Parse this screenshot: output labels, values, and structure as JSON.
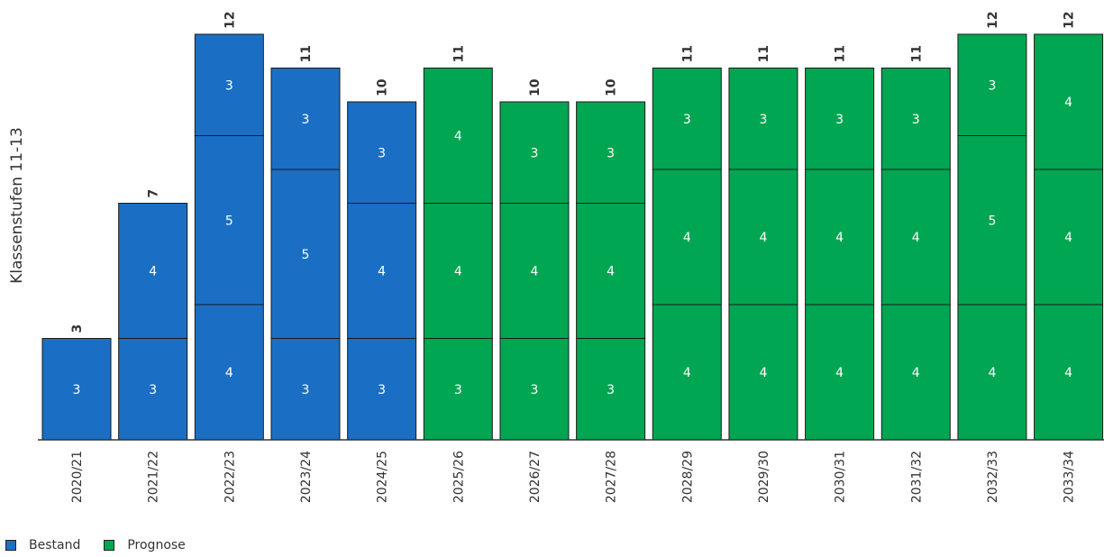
{
  "chart_data": {
    "type": "bar",
    "stacked": true,
    "ylabel": "Klassenstufen 11-13",
    "categories": [
      "2020/21",
      "2021/22",
      "2022/23",
      "2023/24",
      "2024/25",
      "2025/26",
      "2026/27",
      "2027/28",
      "2028/29",
      "2029/30",
      "2030/31",
      "2031/32",
      "2032/33",
      "2033/34"
    ],
    "bars": [
      {
        "segments": [
          3
        ],
        "total": 3,
        "series": "Bestand"
      },
      {
        "segments": [
          3,
          4
        ],
        "total": 7,
        "series": "Bestand"
      },
      {
        "segments": [
          4,
          5,
          3
        ],
        "total": 12,
        "series": "Bestand"
      },
      {
        "segments": [
          3,
          5,
          3
        ],
        "total": 11,
        "series": "Bestand"
      },
      {
        "segments": [
          3,
          4,
          3
        ],
        "total": 10,
        "series": "Bestand"
      },
      {
        "segments": [
          3,
          4,
          4
        ],
        "total": 11,
        "series": "Prognose"
      },
      {
        "segments": [
          3,
          4,
          3
        ],
        "total": 10,
        "series": "Prognose"
      },
      {
        "segments": [
          3,
          4,
          3
        ],
        "total": 10,
        "series": "Prognose"
      },
      {
        "segments": [
          4,
          4,
          3
        ],
        "total": 11,
        "series": "Prognose"
      },
      {
        "segments": [
          4,
          4,
          3
        ],
        "total": 11,
        "series": "Prognose"
      },
      {
        "segments": [
          4,
          4,
          3
        ],
        "total": 11,
        "series": "Prognose"
      },
      {
        "segments": [
          4,
          4,
          3
        ],
        "total": 11,
        "series": "Prognose"
      },
      {
        "segments": [
          4,
          5,
          3
        ],
        "total": 12,
        "series": "Prognose"
      },
      {
        "segments": [
          4,
          4,
          4
        ],
        "total": 12,
        "series": "Prognose"
      }
    ],
    "ylim": [
      0,
      12
    ],
    "grid": false,
    "legend": {
      "placement": "bottom-left",
      "entries": [
        {
          "name": "Bestand",
          "color": "#1a6fc4"
        },
        {
          "name": "Prognose",
          "color": "#00a651"
        }
      ]
    }
  }
}
